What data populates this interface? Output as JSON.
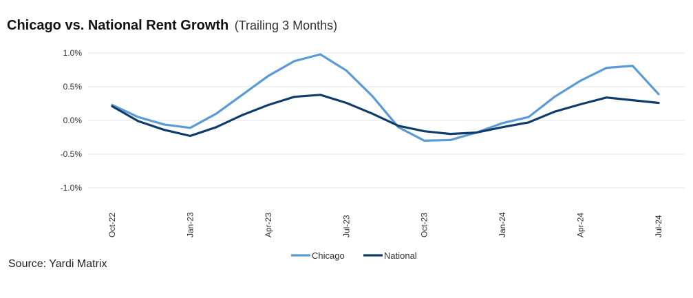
{
  "header": {
    "title": "Chicago vs. National Rent Growth",
    "subtitle": "(Trailing 3 Months)"
  },
  "footer": {
    "source": "Source: Yardi Matrix"
  },
  "chart_data": {
    "type": "line",
    "title": "Chicago vs. National Rent Growth",
    "subtitle": "(Trailing 3 Months)",
    "xlabel": "",
    "ylabel": "",
    "x": [
      "Oct-22",
      "Nov-22",
      "Dec-22",
      "Jan-23",
      "Feb-23",
      "Mar-23",
      "Apr-23",
      "May-23",
      "Jun-23",
      "Jul-23",
      "Aug-23",
      "Sep-23",
      "Oct-23",
      "Nov-23",
      "Dec-23",
      "Jan-24",
      "Feb-24",
      "Mar-24",
      "Apr-24",
      "May-24",
      "Jun-24",
      "Jul-24"
    ],
    "x_tick_labels": [
      "Oct-22",
      "Jan-23",
      "Apr-23",
      "Jul-23",
      "Oct-23",
      "Jan-24",
      "Apr-24",
      "Jul-24"
    ],
    "y_ticks": [
      1.0,
      0.5,
      0.0,
      -0.5,
      -1.0
    ],
    "y_tick_labels": [
      "1.0%",
      "0.5%",
      "0.0%",
      "-0.5%",
      "-1.0%"
    ],
    "ylim": [
      -1.0,
      1.0
    ],
    "grid": "horizontal",
    "legend_position": "bottom-center",
    "series": [
      {
        "name": "Chicago",
        "color": "#5b9bd5",
        "values": [
          0.23,
          0.05,
          -0.06,
          -0.11,
          0.1,
          0.38,
          0.66,
          0.88,
          0.98,
          0.74,
          0.36,
          -0.1,
          -0.3,
          -0.29,
          -0.18,
          -0.04,
          0.05,
          0.35,
          0.59,
          0.78,
          0.81,
          0.39
        ]
      },
      {
        "name": "National",
        "color": "#0e3c6b",
        "values": [
          0.21,
          -0.01,
          -0.14,
          -0.23,
          -0.1,
          0.08,
          0.23,
          0.35,
          0.38,
          0.26,
          0.1,
          -0.08,
          -0.16,
          -0.2,
          -0.18,
          -0.1,
          -0.03,
          0.13,
          0.24,
          0.34,
          0.3,
          0.26
        ]
      }
    ]
  }
}
